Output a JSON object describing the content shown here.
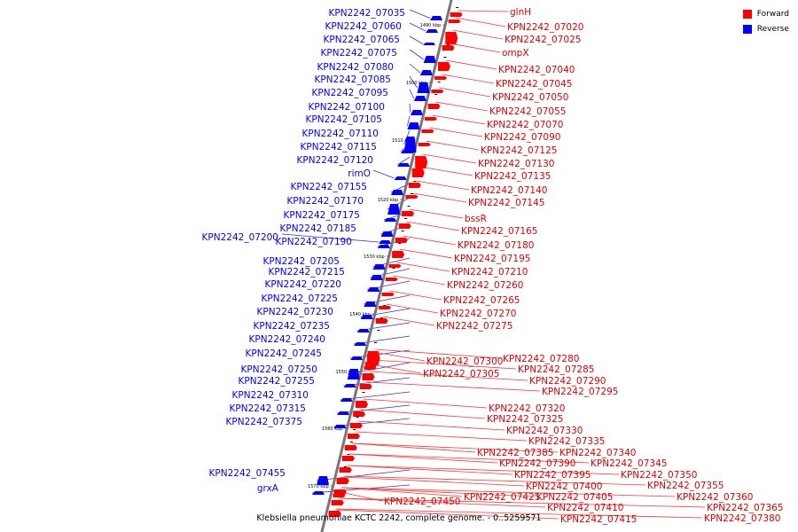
{
  "legend": {
    "forward": {
      "label": "Forward",
      "color": "#ff0000"
    },
    "reverse": {
      "label": "Reverse",
      "color": "#0000ff"
    }
  },
  "caption": "Klebsiella pneumoniae KCTC 2242, complete genome. - 0..5259571",
  "ticks": [
    "1490 kbp",
    "1500 kbp",
    "1510 kbp",
    "1520 kbp",
    "1530 kbp",
    "1540 kbp",
    "1550 kbp",
    "1560 kbp",
    "1570 kbp"
  ],
  "reverse_labels": [
    "KPN2242_07035",
    "KPN2242_07060",
    "KPN2242_07065",
    "KPN2242_07075",
    "KPN2242_07080",
    "KPN2242_07085",
    "KPN2242_07095",
    "KPN2242_07100",
    "KPN2242_07105",
    "KPN2242_07110",
    "KPN2242_07115",
    "KPN2242_07120",
    "rimO",
    "KPN2242_07155",
    "KPN2242_07170",
    "KPN2242_07175",
    "KPN2242_07185",
    "KPN2242_07200",
    "KPN2242_07190",
    "KPN2242_07205",
    "KPN2242_07215",
    "KPN2242_07220",
    "KPN2242_07225",
    "KPN2242_07230",
    "KPN2242_07235",
    "KPN2242_07240",
    "KPN2242_07245",
    "KPN2242_07250",
    "KPN2242_07255",
    "KPN2242_07310",
    "KPN2242_07315",
    "KPN2242_07375",
    "KPN2242_07455",
    "grxA"
  ],
  "forward_labels": [
    "glnH",
    "KPN2242_07020",
    "KPN2242_07025",
    "ompX",
    "KPN2242_07040",
    "KPN2242_07045",
    "KPN2242_07050",
    "KPN2242_07055",
    "KPN2242_07070",
    "KPN2242_07090",
    "KPN2242_07125",
    "KPN2242_07130",
    "KPN2242_07135",
    "KPN2242_07140",
    "KPN2242_07145",
    "bssR",
    "KPN2242_07165",
    "KPN2242_07180",
    "KPN2242_07195",
    "KPN2242_07210",
    "KPN2242_07260",
    "KPN2242_07265",
    "KPN2242_07270",
    "KPN2242_07275",
    "KPN2242_07280",
    "KPN2242_07300",
    "KPN2242_07285",
    "KPN2242_07305",
    "KPN2242_07290",
    "KPN2242_07295",
    "KPN2242_07320",
    "KPN2242_07325",
    "KPN2242_07330",
    "KPN2242_07335",
    "KPN2242_07340",
    "KPN2242_07385",
    "KPN2242_07345",
    "KPN2242_07390",
    "KPN2242_07350",
    "KPN2242_07395",
    "KPN2242_07355",
    "KPN2242_07400",
    "KPN2242_07360",
    "KPN2242_07405",
    "KPN2242_07425",
    "KPN2242_07450",
    "KPN2242_07365",
    "KPN2242_07410",
    "KPN2242_07380",
    "KPN2242_07415"
  ]
}
